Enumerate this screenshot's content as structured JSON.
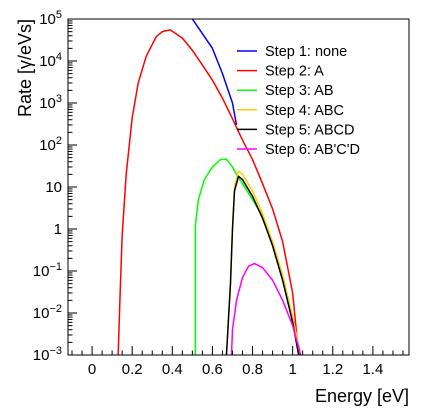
{
  "chart_data": {
    "type": "line",
    "title": "",
    "xlabel": "Energy [eV]",
    "ylabel": "Rate [γ/eVs]",
    "xlim": [
      -0.12,
      1.58
    ],
    "ylim": [
      0.001,
      100000
    ],
    "yscale": "log",
    "grid": false,
    "legend_position": "top-right",
    "x_ticks": [
      {
        "v": 0,
        "label": "0"
      },
      {
        "v": 0.2,
        "label": "0.2"
      },
      {
        "v": 0.4,
        "label": "0.4"
      },
      {
        "v": 0.6,
        "label": "0.6"
      },
      {
        "v": 0.8,
        "label": "0.8"
      },
      {
        "v": 1.0,
        "label": "1"
      },
      {
        "v": 1.2,
        "label": "1.2"
      },
      {
        "v": 1.4,
        "label": "1.4"
      }
    ],
    "y_ticks": [
      {
        "v": 0.001,
        "base": "10",
        "exp": "−3"
      },
      {
        "v": 0.01,
        "base": "10",
        "exp": "−2"
      },
      {
        "v": 0.1,
        "base": "10",
        "exp": "−1"
      },
      {
        "v": 1,
        "base": "1",
        "exp": ""
      },
      {
        "v": 10,
        "base": "10",
        "exp": ""
      },
      {
        "v": 100,
        "base": "10",
        "exp": "2"
      },
      {
        "v": 1000,
        "base": "10",
        "exp": "3"
      },
      {
        "v": 10000,
        "base": "10",
        "exp": "4"
      },
      {
        "v": 100000,
        "base": "10",
        "exp": "5"
      }
    ],
    "series": [
      {
        "name": "Step 1: none",
        "color": "#0000ff",
        "points": [
          [
            0.5,
            100000
          ],
          [
            0.6,
            20000
          ],
          [
            0.65,
            5000
          ],
          [
            0.7,
            1000
          ],
          [
            0.72,
            300
          ]
        ]
      },
      {
        "name": "Step 2: A",
        "color": "#ff0000",
        "points": [
          [
            0.13,
            0.001
          ],
          [
            0.14,
            0.03
          ],
          [
            0.15,
            0.7
          ],
          [
            0.17,
            20
          ],
          [
            0.2,
            450
          ],
          [
            0.23,
            3000
          ],
          [
            0.27,
            13000
          ],
          [
            0.32,
            38000
          ],
          [
            0.35,
            50000
          ],
          [
            0.39,
            55000
          ],
          [
            0.45,
            35000
          ],
          [
            0.5,
            18000
          ],
          [
            0.55,
            8000
          ],
          [
            0.6,
            3500
          ],
          [
            0.65,
            1300
          ],
          [
            0.7,
            420
          ],
          [
            0.75,
            130
          ],
          [
            0.8,
            45
          ],
          [
            0.85,
            12
          ],
          [
            0.9,
            3
          ],
          [
            0.95,
            0.5
          ],
          [
            1.0,
            0.03
          ],
          [
            1.03,
            0.001
          ]
        ]
      },
      {
        "name": "Step 3: AB",
        "color": "#00ff00",
        "points": [
          [
            0.515,
            0.001
          ],
          [
            0.515,
            1.2
          ],
          [
            0.53,
            5
          ],
          [
            0.56,
            15
          ],
          [
            0.6,
            30
          ],
          [
            0.64,
            45
          ],
          [
            0.67,
            46
          ],
          [
            0.7,
            30
          ],
          [
            0.72,
            20
          ],
          [
            0.75,
            12
          ],
          [
            0.8,
            5
          ],
          [
            0.85,
            2
          ],
          [
            0.9,
            0.4
          ],
          [
            0.95,
            0.06
          ],
          [
            1.0,
            0.008
          ],
          [
            1.03,
            0.001
          ]
        ]
      },
      {
        "name": "Step 4: ABC",
        "color": "#ffcc00",
        "points": [
          [
            0.67,
            0.001
          ],
          [
            0.69,
            0.05
          ],
          [
            0.7,
            1
          ],
          [
            0.71,
            10
          ],
          [
            0.73,
            24
          ],
          [
            0.75,
            20
          ],
          [
            0.8,
            8
          ],
          [
            0.85,
            2.3
          ],
          [
            0.9,
            0.5
          ],
          [
            0.95,
            0.08
          ],
          [
            1.0,
            0.008
          ],
          [
            1.04,
            0.001
          ]
        ]
      },
      {
        "name": "Step 5: ABCD",
        "color": "#000000",
        "points": [
          [
            0.67,
            0.001
          ],
          [
            0.69,
            0.05
          ],
          [
            0.7,
            1
          ],
          [
            0.71,
            8
          ],
          [
            0.73,
            18
          ],
          [
            0.75,
            15
          ],
          [
            0.8,
            6
          ],
          [
            0.85,
            1.8
          ],
          [
            0.9,
            0.4
          ],
          [
            0.95,
            0.06
          ],
          [
            1.0,
            0.006
          ],
          [
            1.03,
            0.001
          ]
        ]
      },
      {
        "name": "Step 6: AB'C'D",
        "color": "#ff00ff",
        "points": [
          [
            0.695,
            0.001
          ],
          [
            0.7,
            0.004
          ],
          [
            0.72,
            0.02
          ],
          [
            0.75,
            0.07
          ],
          [
            0.78,
            0.13
          ],
          [
            0.81,
            0.15
          ],
          [
            0.85,
            0.12
          ],
          [
            0.9,
            0.06
          ],
          [
            0.95,
            0.02
          ],
          [
            1.0,
            0.005
          ],
          [
            1.04,
            0.001
          ]
        ]
      }
    ]
  }
}
